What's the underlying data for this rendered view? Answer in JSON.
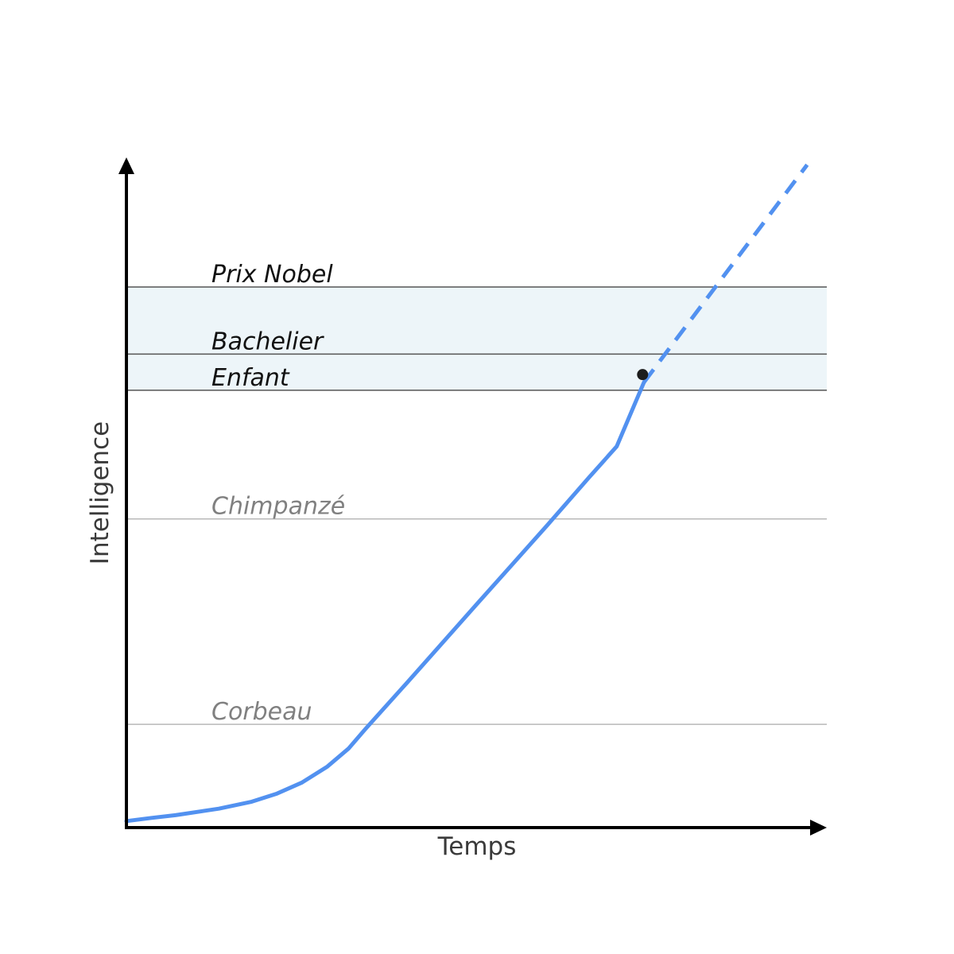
{
  "chart_data": {
    "type": "line",
    "xlabel": "Temps",
    "ylabel": "Intelligence",
    "xlim": [
      0,
      100
    ],
    "ylim": [
      0,
      100
    ],
    "band": {
      "from": 80.9,
      "to": 100
    },
    "levels": [
      {
        "id": "prix-nobel",
        "label": "Prix Nobel",
        "y": 100,
        "emphasis": "strong"
      },
      {
        "id": "bachelier",
        "label": "Bachelier",
        "y": 87.6,
        "emphasis": "strong"
      },
      {
        "id": "enfant",
        "label": "Enfant",
        "y": 80.9,
        "emphasis": "strong"
      },
      {
        "id": "chimpanze",
        "label": "Chimpanzé",
        "y": 57.1,
        "emphasis": "faint"
      },
      {
        "id": "corbeau",
        "label": "Corbeau",
        "y": 19.1,
        "emphasis": "faint"
      }
    ],
    "series": [
      {
        "style": "solid",
        "points": [
          [
            0,
            1.2
          ],
          [
            3.6,
            1.8
          ],
          [
            7.0,
            2.3
          ],
          [
            13.2,
            3.5
          ],
          [
            17.9,
            4.8
          ],
          [
            21.5,
            6.3
          ],
          [
            25.0,
            8.3
          ],
          [
            28.7,
            11.3
          ],
          [
            31.7,
            14.6
          ],
          [
            34.1,
            18.2
          ],
          [
            40.0,
            26.7
          ],
          [
            50.0,
            41.3
          ],
          [
            60.0,
            55.8
          ],
          [
            66.0,
            64.7
          ],
          [
            70.0,
            70.5
          ],
          [
            73.9,
            82.4
          ]
        ]
      },
      {
        "style": "dashed",
        "points": [
          [
            73.9,
            82.4
          ],
          [
            97.2,
            122.6
          ]
        ]
      }
    ],
    "marker": {
      "x": 73.7,
      "y": 83.8
    },
    "colors": {
      "line": "#5291f0",
      "band": "#edf5f9",
      "strong_rule": "#555555",
      "faint_rule": "#b8b8b8",
      "strong_text": "#111111",
      "faint_text": "#808080",
      "marker": "#1d1d1d",
      "axis": "#000000"
    }
  }
}
